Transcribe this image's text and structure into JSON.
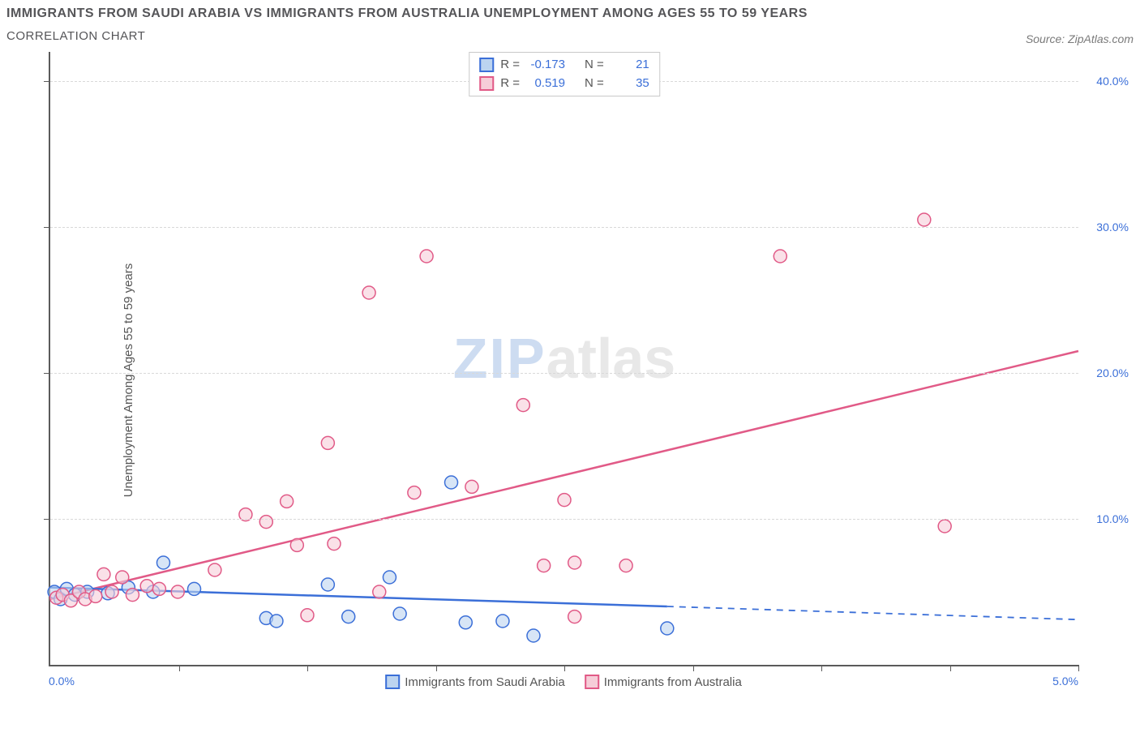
{
  "title": "IMMIGRANTS FROM SAUDI ARABIA VS IMMIGRANTS FROM AUSTRALIA UNEMPLOYMENT AMONG AGES 55 TO 59 YEARS",
  "subtitle": "CORRELATION CHART",
  "source": "Source: ZipAtlas.com",
  "y_axis_label": "Unemployment Among Ages 55 to 59 years",
  "watermark_a": "ZIP",
  "watermark_b": "atlas",
  "x_origin_label": "0.0%",
  "x_max_label": "5.0%",
  "legend_a": "Immigrants from Saudi Arabia",
  "legend_b": "Immigrants from Australia",
  "chart": {
    "type": "scatter",
    "x_range": [
      0.0,
      5.0
    ],
    "y_range": [
      0.0,
      42.0
    ],
    "y_ticks": [
      10.0,
      20.0,
      30.0,
      40.0
    ],
    "y_tick_labels": [
      "10.0%",
      "20.0%",
      "30.0%",
      "40.0%"
    ],
    "x_ticks": [
      0.625,
      1.25,
      1.875,
      2.5,
      3.125,
      3.75,
      4.375,
      5.0
    ],
    "grid_color": "#d9d9d9",
    "background_color": "#ffffff",
    "axis_color": "#5a5a5a",
    "marker_radius": 8,
    "marker_stroke_width": 1.5,
    "line_width": 2.5,
    "series": [
      {
        "id": "saudi",
        "label": "Immigrants from Saudi Arabia",
        "fill": "#bcd4f0",
        "stroke": "#3b6fd8",
        "fill_opacity": 0.6,
        "r_label": "R =",
        "r_value": "-0.173",
        "n_label": "N =",
        "n_value": "21",
        "regression": {
          "x1": 0.0,
          "y1": 5.3,
          "x2": 3.0,
          "y2": 4.0,
          "extend_x2": 5.0,
          "extend_y2": 3.1
        },
        "points": [
          [
            0.02,
            5.0
          ],
          [
            0.05,
            4.5
          ],
          [
            0.08,
            5.2
          ],
          [
            0.12,
            4.8
          ],
          [
            0.18,
            5.0
          ],
          [
            0.28,
            4.9
          ],
          [
            0.38,
            5.3
          ],
          [
            0.5,
            5.0
          ],
          [
            0.55,
            7.0
          ],
          [
            0.7,
            5.2
          ],
          [
            1.05,
            3.2
          ],
          [
            1.1,
            3.0
          ],
          [
            1.35,
            5.5
          ],
          [
            1.45,
            3.3
          ],
          [
            1.65,
            6.0
          ],
          [
            1.7,
            3.5
          ],
          [
            1.95,
            12.5
          ],
          [
            2.02,
            2.9
          ],
          [
            2.2,
            3.0
          ],
          [
            2.35,
            2.0
          ],
          [
            3.0,
            2.5
          ]
        ]
      },
      {
        "id": "australia",
        "label": "Immigrants from Australia",
        "fill": "#f6cdd8",
        "stroke": "#e15a87",
        "fill_opacity": 0.6,
        "r_label": "R =",
        "r_value": "0.519",
        "n_label": "N =",
        "n_value": "35",
        "regression": {
          "x1": 0.0,
          "y1": 4.5,
          "x2": 5.0,
          "y2": 21.5
        },
        "points": [
          [
            0.03,
            4.6
          ],
          [
            0.06,
            4.8
          ],
          [
            0.1,
            4.4
          ],
          [
            0.14,
            5.0
          ],
          [
            0.17,
            4.5
          ],
          [
            0.22,
            4.7
          ],
          [
            0.26,
            6.2
          ],
          [
            0.3,
            5.0
          ],
          [
            0.35,
            6.0
          ],
          [
            0.4,
            4.8
          ],
          [
            0.47,
            5.4
          ],
          [
            0.53,
            5.2
          ],
          [
            0.62,
            5.0
          ],
          [
            0.8,
            6.5
          ],
          [
            0.95,
            10.3
          ],
          [
            1.05,
            9.8
          ],
          [
            1.15,
            11.2
          ],
          [
            1.2,
            8.2
          ],
          [
            1.25,
            3.4
          ],
          [
            1.35,
            15.2
          ],
          [
            1.38,
            8.3
          ],
          [
            1.55,
            25.5
          ],
          [
            1.6,
            5.0
          ],
          [
            1.77,
            11.8
          ],
          [
            1.83,
            28.0
          ],
          [
            2.05,
            12.2
          ],
          [
            2.3,
            17.8
          ],
          [
            2.4,
            6.8
          ],
          [
            2.5,
            11.3
          ],
          [
            2.55,
            7.0
          ],
          [
            2.55,
            3.3
          ],
          [
            2.8,
            6.8
          ],
          [
            3.55,
            28.0
          ],
          [
            4.25,
            30.5
          ],
          [
            4.35,
            9.5
          ]
        ]
      }
    ]
  }
}
